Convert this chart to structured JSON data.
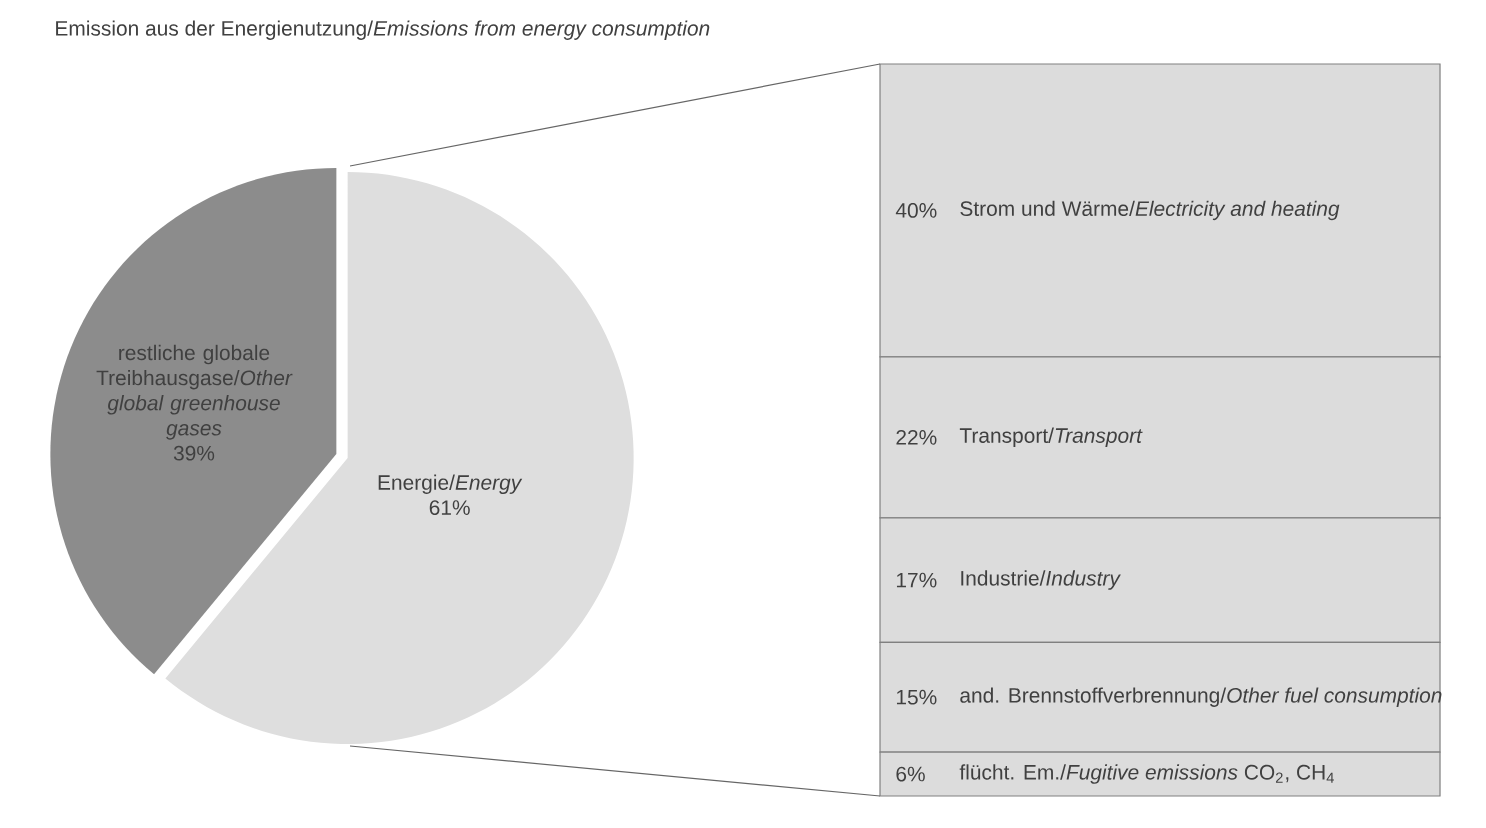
{
  "chart_data": [
    {
      "type": "pie",
      "title": "Emission aus der Energienutzung/*Emissions from energy consumption*",
      "categories": [
        "Energie/*Energy*",
        "restliche globale Treibhausgase/*Other global greenhouse gases*"
      ],
      "values": [
        61,
        39
      ],
      "colors": [
        "#dedede",
        "#8c8c8c"
      ],
      "value_labels": [
        "61%",
        "39%"
      ]
    },
    {
      "type": "bar",
      "stacked": true,
      "tick_labels": false,
      "categories": [
        null
      ],
      "series": [
        {
          "name": "flücht. Em./*Fugitive emissions* CO$_{2}$, CH$_{4}$",
          "color": "#dcdcdc",
          "values": [
            6
          ],
          "value_labels": [
            "6%"
          ]
        },
        {
          "name": "and. Brennstoffverbrennung/*Other fuel consumption*",
          "color": "#dcdcdc",
          "values": [
            15
          ],
          "value_labels": [
            "15%"
          ]
        },
        {
          "name": "Industrie/*Industry*",
          "color": "#dcdcdc",
          "values": [
            17
          ],
          "value_labels": [
            "17%"
          ]
        },
        {
          "name": "Transport/*Transport*",
          "color": "#dcdcdc",
          "values": [
            22
          ],
          "value_labels": [
            "22%"
          ]
        },
        {
          "name": "Strom und Wärme/*Electricity and heating*",
          "color": "#dcdcdc",
          "values": [
            40
          ],
          "value_labels": [
            "40%"
          ]
        }
      ]
    }
  ]
}
